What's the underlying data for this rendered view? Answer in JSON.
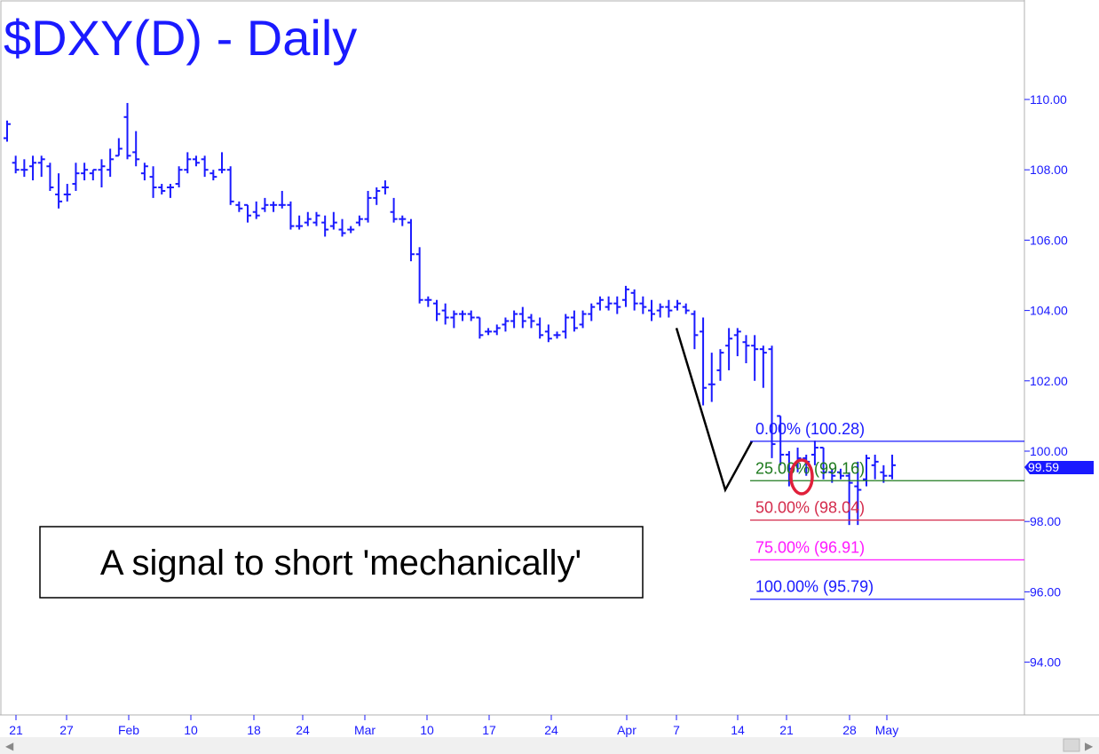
{
  "chart_data": {
    "type": "ohlc",
    "title": "$DXY(D) - Daily",
    "ylim": [
      92.5,
      112.7
    ],
    "y_ticks": [
      "94.00",
      "96.00",
      "98.00",
      "100.00",
      "102.00",
      "104.00",
      "106.00",
      "108.00",
      "110.00"
    ],
    "x_ticks": [
      "21",
      "27",
      "Feb",
      "10",
      "18",
      "24",
      "Mar",
      "10",
      "17",
      "24",
      "Apr",
      "7",
      "14",
      "21",
      "28",
      "May"
    ],
    "last_price": "99.59",
    "grid": false,
    "series_color": "#1a1aff",
    "bars": [
      {
        "date": "Jan 21",
        "open": 108.9,
        "high": 109.4,
        "low": 108.8,
        "close": 109.3
      },
      {
        "date": "Jan 22",
        "open": 108.2,
        "high": 108.4,
        "low": 107.9,
        "close": 108.0
      },
      {
        "date": "Jan 23",
        "open": 108.0,
        "high": 108.3,
        "low": 107.8,
        "close": 108.0
      },
      {
        "date": "Jan 24",
        "open": 108.1,
        "high": 108.4,
        "low": 107.7,
        "close": 108.2
      },
      {
        "date": "Jan 25",
        "open": 108.2,
        "high": 108.4,
        "low": 107.8,
        "close": 108.3
      },
      {
        "date": "Jan 26",
        "open": 108.1,
        "high": 108.2,
        "low": 107.4,
        "close": 107.5
      },
      {
        "date": "Jan 27",
        "open": 107.3,
        "high": 107.9,
        "low": 106.9,
        "close": 107.1
      },
      {
        "date": "Jan 28",
        "open": 107.3,
        "high": 107.6,
        "low": 107.1,
        "close": 107.3
      },
      {
        "date": "Jan 29",
        "open": 107.6,
        "high": 108.2,
        "low": 107.4,
        "close": 107.9
      },
      {
        "date": "Jan 30",
        "open": 107.9,
        "high": 108.2,
        "low": 107.7,
        "close": 108.0
      },
      {
        "date": "Jan 31",
        "open": 107.9,
        "high": 108.0,
        "low": 107.7,
        "close": 108.0
      },
      {
        "date": "Feb 1",
        "open": 108.0,
        "high": 108.3,
        "low": 107.5,
        "close": 108.1
      },
      {
        "date": "Feb 2",
        "open": 108.0,
        "high": 108.6,
        "low": 107.8,
        "close": 108.3
      },
      {
        "date": "Feb 3",
        "open": 108.4,
        "high": 108.9,
        "low": 108.4,
        "close": 108.6
      },
      {
        "date": "Feb 4",
        "open": 109.5,
        "high": 109.9,
        "low": 108.3,
        "close": 108.4
      },
      {
        "date": "Feb 5",
        "open": 108.5,
        "high": 109.1,
        "low": 108.1,
        "close": 108.3
      },
      {
        "date": "Feb 6",
        "open": 107.9,
        "high": 108.2,
        "low": 107.7,
        "close": 108.1
      },
      {
        "date": "Feb 7",
        "open": 107.8,
        "high": 108.1,
        "low": 107.2,
        "close": 107.5
      },
      {
        "date": "Feb 8",
        "open": 107.5,
        "high": 107.6,
        "low": 107.3,
        "close": 107.4
      },
      {
        "date": "Feb 9",
        "open": 107.5,
        "high": 107.6,
        "low": 107.2,
        "close": 107.5
      },
      {
        "date": "Feb 10",
        "open": 107.6,
        "high": 108.1,
        "low": 107.5,
        "close": 108.0
      },
      {
        "date": "Feb 11",
        "open": 108.0,
        "high": 108.5,
        "low": 107.9,
        "close": 108.3
      },
      {
        "date": "Feb 12",
        "open": 108.3,
        "high": 108.4,
        "low": 108.1,
        "close": 108.2
      },
      {
        "date": "Feb 13",
        "open": 108.3,
        "high": 108.4,
        "low": 107.8,
        "close": 108.0
      },
      {
        "date": "Feb 14",
        "open": 107.9,
        "high": 108.0,
        "low": 107.7,
        "close": 107.8
      },
      {
        "date": "Feb 15",
        "open": 108.0,
        "high": 108.5,
        "low": 107.9,
        "close": 108.0
      },
      {
        "date": "Feb 16",
        "open": 108.0,
        "high": 108.1,
        "low": 107.0,
        "close": 107.1
      },
      {
        "date": "Feb 17",
        "open": 107.0,
        "high": 107.1,
        "low": 106.8,
        "close": 106.9
      },
      {
        "date": "Feb 18",
        "open": 107.0,
        "high": 107.0,
        "low": 106.5,
        "close": 106.7
      },
      {
        "date": "Feb 19",
        "open": 106.8,
        "high": 107.1,
        "low": 106.6,
        "close": 106.7
      },
      {
        "date": "Feb 20",
        "open": 106.9,
        "high": 107.2,
        "low": 106.8,
        "close": 107.0
      },
      {
        "date": "Feb 21",
        "open": 107.0,
        "high": 107.1,
        "low": 106.8,
        "close": 107.0
      },
      {
        "date": "Feb 22",
        "open": 107.0,
        "high": 107.4,
        "low": 106.9,
        "close": 107.0
      },
      {
        "date": "Feb 23",
        "open": 107.0,
        "high": 107.1,
        "low": 106.3,
        "close": 106.4
      },
      {
        "date": "Feb 24",
        "open": 106.4,
        "high": 106.7,
        "low": 106.3,
        "close": 106.4
      },
      {
        "date": "Feb 25",
        "open": 106.5,
        "high": 106.8,
        "low": 106.4,
        "close": 106.6
      },
      {
        "date": "Feb 26",
        "open": 106.5,
        "high": 106.8,
        "low": 106.4,
        "close": 106.7
      },
      {
        "date": "Feb 27",
        "open": 106.5,
        "high": 106.7,
        "low": 106.1,
        "close": 106.3
      },
      {
        "date": "Feb 28",
        "open": 106.4,
        "high": 106.8,
        "low": 106.3,
        "close": 106.5
      },
      {
        "date": "Mar 1",
        "open": 106.3,
        "high": 106.6,
        "low": 106.1,
        "close": 106.2
      },
      {
        "date": "Mar 2",
        "open": 106.3,
        "high": 106.4,
        "low": 106.2,
        "close": 106.3
      },
      {
        "date": "Mar 3",
        "open": 106.5,
        "high": 106.7,
        "low": 106.4,
        "close": 106.6
      },
      {
        "date": "Mar 4",
        "open": 106.6,
        "high": 107.4,
        "low": 106.5,
        "close": 107.2
      },
      {
        "date": "Mar 5",
        "open": 107.2,
        "high": 107.5,
        "low": 107.0,
        "close": 107.4
      },
      {
        "date": "Mar 6",
        "open": 107.5,
        "high": 107.7,
        "low": 107.3,
        "close": 107.5
      },
      {
        "date": "Mar 7",
        "open": 106.8,
        "high": 107.2,
        "low": 106.5,
        "close": 106.6
      },
      {
        "date": "Mar 8",
        "open": 106.6,
        "high": 106.7,
        "low": 106.4,
        "close": 106.6
      },
      {
        "date": "Mar 9",
        "open": 106.5,
        "high": 106.6,
        "low": 105.4,
        "close": 105.6
      },
      {
        "date": "Mar 10",
        "open": 105.6,
        "high": 105.8,
        "low": 104.2,
        "close": 104.3
      },
      {
        "date": "Mar 11",
        "open": 104.3,
        "high": 104.4,
        "low": 104.1,
        "close": 104.3
      },
      {
        "date": "Mar 12",
        "open": 104.2,
        "high": 104.3,
        "low": 103.7,
        "close": 103.9
      },
      {
        "date": "Mar 13",
        "open": 104.0,
        "high": 104.2,
        "low": 103.6,
        "close": 103.8
      },
      {
        "date": "Mar 14",
        "open": 103.8,
        "high": 104.0,
        "low": 103.5,
        "close": 103.9
      },
      {
        "date": "Mar 15",
        "open": 103.9,
        "high": 104.0,
        "low": 103.7,
        "close": 103.9
      },
      {
        "date": "Mar 16",
        "open": 103.9,
        "high": 104.0,
        "low": 103.7,
        "close": 103.8
      },
      {
        "date": "Mar 17",
        "open": 103.8,
        "high": 103.8,
        "low": 103.2,
        "close": 103.3
      },
      {
        "date": "Mar 18",
        "open": 103.4,
        "high": 103.5,
        "low": 103.3,
        "close": 103.4
      },
      {
        "date": "Mar 19",
        "open": 103.4,
        "high": 103.6,
        "low": 103.3,
        "close": 103.5
      },
      {
        "date": "Mar 20",
        "open": 103.6,
        "high": 103.8,
        "low": 103.4,
        "close": 103.7
      },
      {
        "date": "Mar 21",
        "open": 103.7,
        "high": 104.0,
        "low": 103.5,
        "close": 103.9
      },
      {
        "date": "Mar 22",
        "open": 103.9,
        "high": 104.1,
        "low": 103.5,
        "close": 103.7
      },
      {
        "date": "Mar 23",
        "open": 103.8,
        "high": 103.9,
        "low": 103.5,
        "close": 103.7
      },
      {
        "date": "Mar 24",
        "open": 103.6,
        "high": 103.8,
        "low": 103.2,
        "close": 103.3
      },
      {
        "date": "Mar 25",
        "open": 103.4,
        "high": 103.6,
        "low": 103.1,
        "close": 103.2
      },
      {
        "date": "Mar 26",
        "open": 103.3,
        "high": 103.4,
        "low": 103.2,
        "close": 103.3
      },
      {
        "date": "Mar 27",
        "open": 103.4,
        "high": 103.9,
        "low": 103.2,
        "close": 103.8
      },
      {
        "date": "Mar 28",
        "open": 103.8,
        "high": 104.0,
        "low": 103.4,
        "close": 103.5
      },
      {
        "date": "Mar 29",
        "open": 103.6,
        "high": 104.0,
        "low": 103.5,
        "close": 103.9
      },
      {
        "date": "Mar 30",
        "open": 103.9,
        "high": 104.2,
        "low": 103.7,
        "close": 104.1
      },
      {
        "date": "Mar 31",
        "open": 104.2,
        "high": 104.4,
        "low": 104.0,
        "close": 104.3
      },
      {
        "date": "Apr 1",
        "open": 104.1,
        "high": 104.4,
        "low": 104.0,
        "close": 104.2
      },
      {
        "date": "Apr 2",
        "open": 104.2,
        "high": 104.4,
        "low": 103.9,
        "close": 104.1
      },
      {
        "date": "Apr 3",
        "open": 104.3,
        "high": 104.7,
        "low": 104.1,
        "close": 104.6
      },
      {
        "date": "Apr 4",
        "open": 104.5,
        "high": 104.6,
        "low": 104.0,
        "close": 104.2
      },
      {
        "date": "Apr 5",
        "open": 104.2,
        "high": 104.4,
        "low": 103.9,
        "close": 104.1
      },
      {
        "date": "Apr 6",
        "open": 104.0,
        "high": 104.3,
        "low": 103.7,
        "close": 103.9
      },
      {
        "date": "Apr 7",
        "open": 104.0,
        "high": 104.2,
        "low": 103.8,
        "close": 104.1
      },
      {
        "date": "Apr 8",
        "open": 104.1,
        "high": 104.3,
        "low": 103.8,
        "close": 104.0
      },
      {
        "date": "Apr 9",
        "open": 104.1,
        "high": 104.3,
        "low": 104.0,
        "close": 104.2
      },
      {
        "date": "Apr 10",
        "open": 104.1,
        "high": 104.2,
        "low": 103.9,
        "close": 104.0
      },
      {
        "date": "Apr 11",
        "open": 103.9,
        "high": 104.0,
        "low": 102.9,
        "close": 103.3
      },
      {
        "date": "Apr 12",
        "open": 103.4,
        "high": 103.8,
        "low": 101.3,
        "close": 101.8
      },
      {
        "date": "Apr 13",
        "open": 101.9,
        "high": 102.8,
        "low": 101.4,
        "close": 101.9
      },
      {
        "date": "Apr 14",
        "open": 102.3,
        "high": 102.9,
        "low": 102.0,
        "close": 102.8
      },
      {
        "date": "Apr 15",
        "open": 103.0,
        "high": 103.5,
        "low": 102.3,
        "close": 103.2
      },
      {
        "date": "Apr 16",
        "open": 103.3,
        "high": 103.5,
        "low": 102.7,
        "close": 103.4
      },
      {
        "date": "Apr 17",
        "open": 103.1,
        "high": 103.3,
        "low": 102.5,
        "close": 103.0
      },
      {
        "date": "Apr 18",
        "open": 103.0,
        "high": 103.3,
        "low": 102.0,
        "close": 102.9
      },
      {
        "date": "Apr 19",
        "open": 102.9,
        "high": 103.0,
        "low": 101.8,
        "close": 102.8
      },
      {
        "date": "Apr 20",
        "open": 102.9,
        "high": 103.0,
        "low": 99.8,
        "close": 100.2
      },
      {
        "date": "Apr 21",
        "open": 101.0,
        "high": 101.0,
        "low": 99.6,
        "close": 99.9
      },
      {
        "date": "Apr 22",
        "open": 99.9,
        "high": 100.0,
        "low": 99.0,
        "close": 99.5
      },
      {
        "date": "Apr 23",
        "open": 99.6,
        "high": 100.1,
        "low": 99.4,
        "close": 99.8
      },
      {
        "date": "Apr 24",
        "open": 99.8,
        "high": 99.9,
        "low": 99.3,
        "close": 99.7
      },
      {
        "date": "Apr 25",
        "open": 99.9,
        "high": 100.3,
        "low": 99.6,
        "close": 100.1
      },
      {
        "date": "Apr 26",
        "open": 100.1,
        "high": 100.1,
        "low": 99.2,
        "close": 99.4
      },
      {
        "date": "Apr 27",
        "open": 99.4,
        "high": 99.5,
        "low": 99.1,
        "close": 99.3
      },
      {
        "date": "Apr 28",
        "open": 99.4,
        "high": 99.5,
        "low": 99.2,
        "close": 99.3
      },
      {
        "date": "Apr 29",
        "open": 99.3,
        "high": 99.4,
        "low": 97.9,
        "close": 99.1
      },
      {
        "date": "Apr 30",
        "open": 99.0,
        "high": 99.7,
        "low": 97.9,
        "close": 98.9
      },
      {
        "date": "May 1",
        "open": 99.2,
        "high": 99.9,
        "low": 99.0,
        "close": 99.8
      },
      {
        "date": "May 2",
        "open": 99.6,
        "high": 99.9,
        "low": 99.2,
        "close": 99.7
      },
      {
        "date": "May 3",
        "open": 99.4,
        "high": 99.6,
        "low": 99.1,
        "close": 99.3
      },
      {
        "date": "May 4",
        "open": 99.3,
        "high": 99.9,
        "low": 99.2,
        "close": 99.6
      }
    ],
    "fib_levels": [
      {
        "label": "0.00% (100.28)",
        "value": 100.28,
        "color": "#1a1aff"
      },
      {
        "label": "25.00% (99.16)",
        "value": 99.16,
        "color": "#1e7a1e"
      },
      {
        "label": "50.00% (98.04)",
        "value": 98.04,
        "color": "#d42b4c"
      },
      {
        "label": "75.00% (96.91)",
        "value": 96.91,
        "color": "#ff1aff"
      },
      {
        "label": "100.00% (95.79)",
        "value": 95.79,
        "color": "#1a1aff"
      }
    ],
    "pattern_line": {
      "color": "#000000",
      "values": [
        103.5,
        98.9,
        100.28
      ]
    },
    "annotation": "A signal to short 'mechanically'",
    "highlight_color": "#e0203a"
  }
}
